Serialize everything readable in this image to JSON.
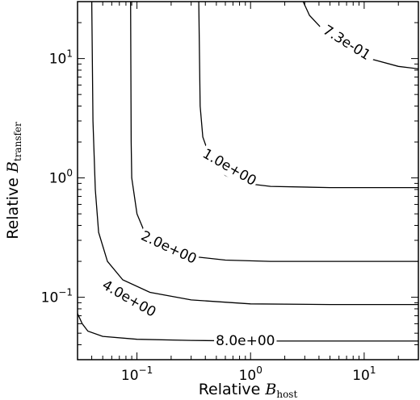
{
  "chart_data": {
    "type": "contour",
    "xscale": "log",
    "yscale": "log",
    "xlim": [
      0.03,
      30
    ],
    "ylim": [
      0.03,
      30
    ],
    "xlabel": {
      "prefix": "Relative",
      "symbol": "B",
      "subscript": "host"
    },
    "ylabel": {
      "prefix": "Relative",
      "symbol": "B",
      "subscript": "transfer"
    },
    "xticks": [
      {
        "value": 0.1,
        "base": "10",
        "exp": "−1"
      },
      {
        "value": 1,
        "base": "10",
        "exp": "0"
      },
      {
        "value": 10,
        "base": "10",
        "exp": "1"
      }
    ],
    "yticks": [
      {
        "value": 0.1,
        "base": "10",
        "exp": "−1"
      },
      {
        "value": 1,
        "base": "10",
        "exp": "0"
      },
      {
        "value": 10,
        "base": "10",
        "exp": "1"
      }
    ],
    "contours": [
      {
        "label": "7.3e-01",
        "label_at": [
          7.0,
          13.5
        ],
        "label_angle": 32,
        "points": [
          [
            2.9,
            30
          ],
          [
            3.3,
            23
          ],
          [
            4.2,
            18
          ],
          [
            5.5,
            14.5
          ],
          [
            8,
            11.5
          ],
          [
            12,
            9.8
          ],
          [
            20,
            8.6
          ],
          [
            30,
            8.2
          ]
        ]
      },
      {
        "label": "1.0e+00",
        "label_at": [
          0.65,
          1.22
        ],
        "label_angle": 30,
        "points": [
          [
            0.35,
            30
          ],
          [
            0.36,
            4
          ],
          [
            0.38,
            2.2
          ],
          [
            0.45,
            1.4
          ],
          [
            0.6,
            1.05
          ],
          [
            0.9,
            0.9
          ],
          [
            1.5,
            0.85
          ],
          [
            5,
            0.83
          ],
          [
            30,
            0.83
          ]
        ]
      },
      {
        "label": "2.0e+00",
        "label_at": [
          0.19,
          0.26
        ],
        "label_angle": 25,
        "points": [
          [
            0.088,
            30
          ],
          [
            0.089,
            2
          ],
          [
            0.09,
            1
          ],
          [
            0.1,
            0.5
          ],
          [
            0.12,
            0.33
          ],
          [
            0.17,
            0.26
          ],
          [
            0.3,
            0.22
          ],
          [
            0.6,
            0.205
          ],
          [
            1.5,
            0.2
          ],
          [
            30,
            0.2
          ]
        ]
      },
      {
        "label": "4.0e+00",
        "label_at": [
          0.085,
          0.097
        ],
        "label_angle": 30,
        "points": [
          [
            0.04,
            30
          ],
          [
            0.041,
            3
          ],
          [
            0.043,
            0.8
          ],
          [
            0.046,
            0.35
          ],
          [
            0.055,
            0.2
          ],
          [
            0.075,
            0.14
          ],
          [
            0.13,
            0.11
          ],
          [
            0.3,
            0.095
          ],
          [
            1,
            0.088
          ],
          [
            5,
            0.087
          ],
          [
            30,
            0.087
          ]
        ]
      },
      {
        "label": "8.0e+00",
        "label_at": [
          0.9,
          0.043
        ],
        "label_angle": 0,
        "points": [
          [
            0.03,
            0.073
          ],
          [
            0.033,
            0.06
          ],
          [
            0.037,
            0.052
          ],
          [
            0.05,
            0.047
          ],
          [
            0.1,
            0.0445
          ],
          [
            0.3,
            0.0435
          ],
          [
            1,
            0.043
          ],
          [
            30,
            0.043
          ]
        ]
      }
    ]
  }
}
